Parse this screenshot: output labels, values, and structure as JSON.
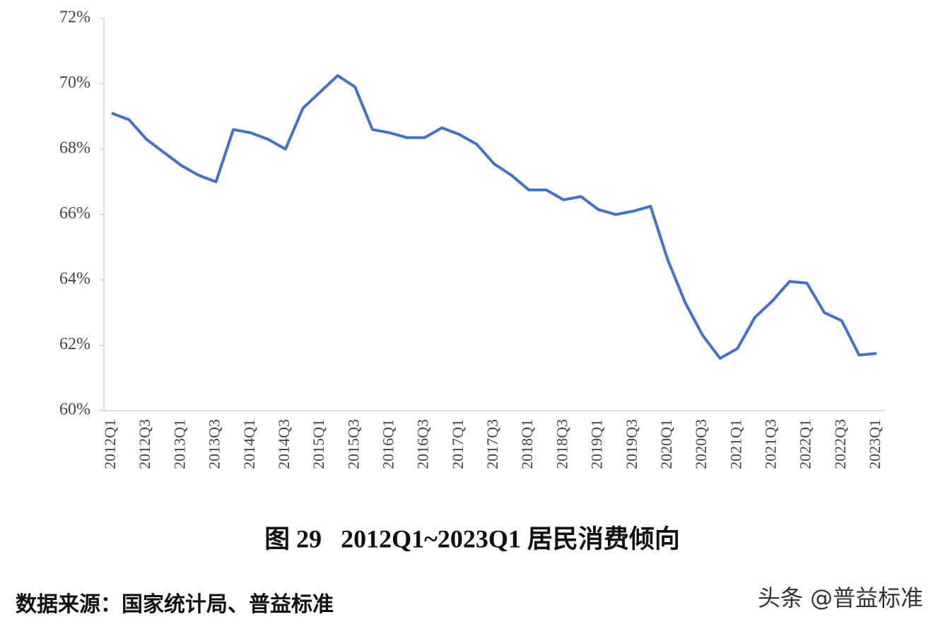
{
  "chart_data": {
    "type": "line",
    "title": "图 29   2012Q1~2023Q1 居民消费倾向",
    "source": "数据来源：国家统计局、普益标准",
    "watermark": "头条 @普益标准",
    "categories": [
      "2012Q1",
      null,
      "2012Q3",
      null,
      "2013Q1",
      null,
      "2013Q3",
      null,
      "2014Q1",
      null,
      "2014Q3",
      null,
      "2015Q1",
      null,
      "2015Q3",
      null,
      "2016Q1",
      null,
      "2016Q3",
      null,
      "2017Q1",
      null,
      "2017Q3",
      null,
      "2018Q1",
      null,
      "2018Q3",
      null,
      "2019Q1",
      null,
      "2019Q3",
      null,
      "2020Q1",
      null,
      "2020Q3",
      null,
      "2021Q1",
      null,
      "2021Q3",
      null,
      "2022Q1",
      null,
      "2022Q3",
      null,
      "2023Q1"
    ],
    "values": [
      69.1,
      68.9,
      68.3,
      67.9,
      67.5,
      67.2,
      67.0,
      68.6,
      68.5,
      68.3,
      68.0,
      69.25,
      69.75,
      70.25,
      69.9,
      68.6,
      68.5,
      68.35,
      68.35,
      68.65,
      68.45,
      68.15,
      67.55,
      67.2,
      66.75,
      66.75,
      66.45,
      66.55,
      66.15,
      66.0,
      66.1,
      66.25,
      64.6,
      63.3,
      62.3,
      61.6,
      61.9,
      62.85,
      63.35,
      63.95,
      63.9,
      63.0,
      62.75,
      61.7,
      61.75
    ],
    "color": "#4472c4",
    "ylim": [
      60,
      72
    ],
    "yticks": [
      {
        "value": 60,
        "label": "60%"
      },
      {
        "value": 62,
        "label": "62%"
      },
      {
        "value": 64,
        "label": "64%"
      },
      {
        "value": 66,
        "label": "66%"
      },
      {
        "value": 68,
        "label": "68%"
      },
      {
        "value": 70,
        "label": "70%"
      },
      {
        "value": 72,
        "label": "72%"
      }
    ]
  }
}
